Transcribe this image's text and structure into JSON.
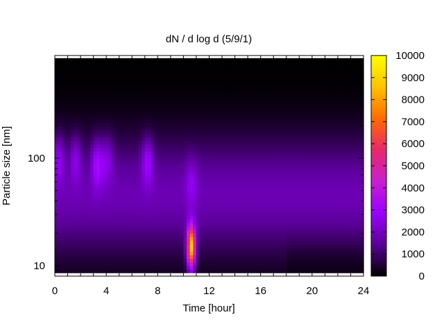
{
  "chart_data": {
    "type": "heatmap",
    "title": "dN / d log d (5/9/1)",
    "xlabel": "Time [hour]",
    "ylabel": "Particle size [nm]",
    "xlim": [
      0,
      24
    ],
    "ylim": [
      8,
      900
    ],
    "y_scale": "log",
    "x_ticks": [
      0,
      4,
      8,
      12,
      16,
      20,
      24
    ],
    "y_tick_labels": [
      {
        "value": 10,
        "label": "10"
      },
      {
        "value": 100,
        "label": "100"
      }
    ],
    "colorbar": {
      "min": 0,
      "max": 10000,
      "ticks": [
        0,
        1000,
        2000,
        3000,
        4000,
        5000,
        6000,
        7000,
        8000,
        9000,
        10000
      ],
      "colormap": [
        "#000000",
        "#5a0098",
        "#9b00ff",
        "#c81fd1",
        "#e8286a",
        "#ff6a00",
        "#ffc200",
        "#ffff00"
      ]
    },
    "background_level": 1800,
    "features": [
      {
        "kind": "banana-mode",
        "time": 10.6,
        "size_nm": 15,
        "value": 9200
      },
      {
        "kind": "accumulation-mode",
        "time": 0.3,
        "size_nm": 100,
        "value": 3300
      },
      {
        "kind": "accumulation-mode",
        "time": 1.6,
        "size_nm": 100,
        "value": 3100
      },
      {
        "kind": "accumulation-mode",
        "time": 3.3,
        "size_nm": 90,
        "value": 3700
      },
      {
        "kind": "accumulation-mode",
        "time": 4.1,
        "size_nm": 100,
        "value": 3000
      },
      {
        "kind": "accumulation-mode",
        "time": 7.2,
        "size_nm": 95,
        "value": 3500
      },
      {
        "kind": "accumulation-mode",
        "time": 10.6,
        "size_nm": 60,
        "value": 2800
      }
    ]
  }
}
